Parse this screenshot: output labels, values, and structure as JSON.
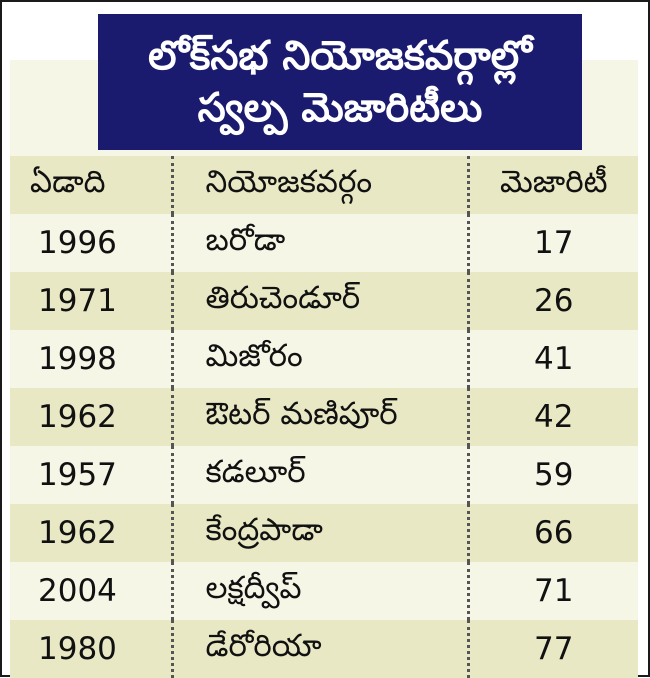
{
  "title": {
    "line1": "లోక్‌సభ నియోజకవర్గాల్లో",
    "line2": "స్వల్ప మెజారిటీలు"
  },
  "headers": {
    "year": "ఏడాది",
    "constituency": "నియోజకవర్గం",
    "majority": "మెజారిటీ"
  },
  "rows": [
    {
      "year": "1996",
      "constituency": "బరోడా",
      "majority": "17"
    },
    {
      "year": "1971",
      "constituency": "తిరుచెండూర్",
      "majority": "26"
    },
    {
      "year": "1998",
      "constituency": "మిజోరం",
      "majority": "41"
    },
    {
      "year": "1962",
      "constituency": "ఔటర్ మణిపూర్",
      "majority": "42"
    },
    {
      "year": "1957",
      "constituency": "కడలూర్",
      "majority": "59"
    },
    {
      "year": "1962",
      "constituency": "కేంద్రపాడా",
      "majority": "66"
    },
    {
      "year": "2004",
      "constituency": "లక్షద్వీప్",
      "majority": "71"
    },
    {
      "year": "1980",
      "constituency": "డేరోరియా",
      "majority": "77"
    }
  ],
  "colors": {
    "title_bg": "#1a1a6e",
    "band": "#e9e8c5",
    "plain": "#f6f6e6"
  }
}
